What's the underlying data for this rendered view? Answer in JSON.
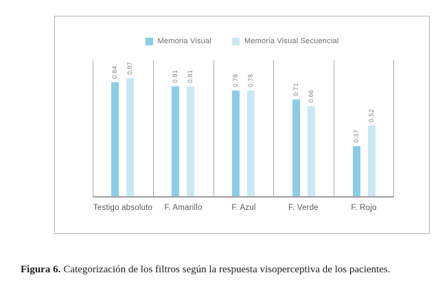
{
  "figure": {
    "caption_label": "Figura 6.",
    "caption_text": "Categorización de los filtros según la respuesta visoperceptiva de los pacientes."
  },
  "chart_data": {
    "type": "bar",
    "title": "",
    "categories": [
      "Testigo absoluto",
      "F. Amarillo",
      "F. Azul",
      "F. Verde",
      "F. Rojo"
    ],
    "series": [
      {
        "name": "Memoria Visual",
        "color": "#8bcde6",
        "values": [
          0.84,
          0.81,
          0.78,
          0.71,
          0.37
        ],
        "labels": [
          "0.84",
          "0.81",
          "0.78",
          "0.71",
          "0.37"
        ]
      },
      {
        "name": "Memoria Visual Secuencial",
        "color": "#c9e8f3",
        "values": [
          0.87,
          0.81,
          0.78,
          0.66,
          0.52
        ],
        "labels": [
          "0.87",
          "0.81",
          "0.78",
          "0.66",
          "0.52"
        ]
      }
    ],
    "ylim": [
      0,
      1.0
    ],
    "grid": "vertical-category-separators",
    "legend_position": "top-center",
    "axis_color": "#9e9e9e",
    "separator_color": "#a8a8a8"
  }
}
